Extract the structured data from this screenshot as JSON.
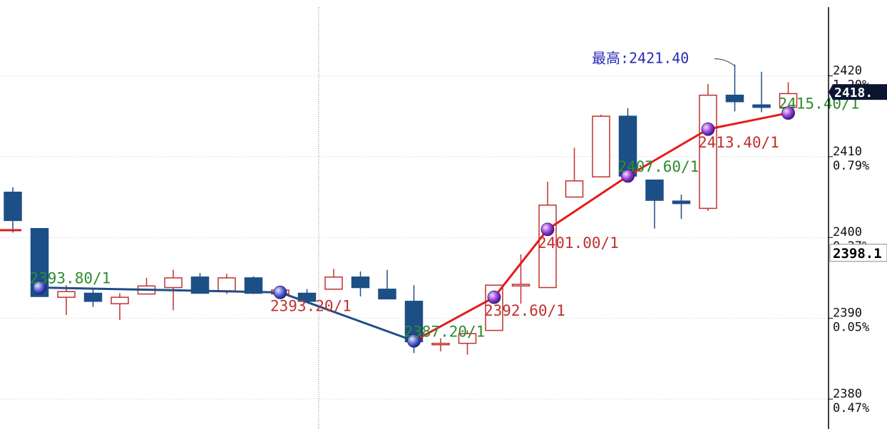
{
  "chart_data": {
    "type": "candlestick",
    "ylim": [
      2376.3,
      2428.5
    ],
    "grid": true,
    "y_ticks": [
      {
        "value": 2420,
        "pct": "1.20%"
      },
      {
        "value": 2410,
        "pct": "0.79%"
      },
      {
        "value": 2400,
        "pct": "0.37%"
      },
      {
        "value": 2390,
        "pct": "0.05%"
      },
      {
        "value": 2380,
        "pct": "0.47%"
      }
    ],
    "candles": [
      {
        "o": 2405.6,
        "h": 2406.2,
        "l": 2400.6,
        "c": 2402.1
      },
      {
        "o": 2401.1,
        "h": 2401.1,
        "l": 2392.7,
        "c": 2392.7
      },
      {
        "o": 2392.6,
        "h": 2394.1,
        "l": 2390.4,
        "c": 2393.3
      },
      {
        "o": 2393.1,
        "h": 2393.6,
        "l": 2391.4,
        "c": 2392.1
      },
      {
        "o": 2391.8,
        "h": 2393.1,
        "l": 2389.8,
        "c": 2392.6
      },
      {
        "o": 2393.0,
        "h": 2395.0,
        "l": 2393.0,
        "c": 2394.0
      },
      {
        "o": 2393.8,
        "h": 2396.0,
        "l": 2391.0,
        "c": 2395.0
      },
      {
        "o": 2395.1,
        "h": 2395.6,
        "l": 2393.1,
        "c": 2393.1
      },
      {
        "o": 2393.4,
        "h": 2395.5,
        "l": 2393.0,
        "c": 2395.0
      },
      {
        "o": 2395.0,
        "h": 2395.2,
        "l": 2393.0,
        "c": 2393.1
      },
      {
        "o": 2393.0,
        "h": 2393.7,
        "l": 2393.0,
        "c": 2393.5
      },
      {
        "o": 2393.1,
        "h": 2393.6,
        "l": 2392.1,
        "c": 2392.1
      },
      {
        "o": 2393.6,
        "h": 2396.1,
        "l": 2393.6,
        "c": 2395.1
      },
      {
        "o": 2395.1,
        "h": 2395.8,
        "l": 2392.7,
        "c": 2393.8
      },
      {
        "o": 2393.6,
        "h": 2396.0,
        "l": 2392.4,
        "c": 2392.4
      },
      {
        "o": 2392.1,
        "h": 2394.1,
        "l": 2385.7,
        "c": 2387.1
      },
      {
        "o": 2386.9,
        "h": 2387.5,
        "l": 2385.9,
        "c": 2386.9
      },
      {
        "o": 2386.9,
        "h": 2388.5,
        "l": 2385.5,
        "c": 2388.1
      },
      {
        "o": 2388.5,
        "h": 2394.1,
        "l": 2388.5,
        "c": 2394.1
      },
      {
        "o": 2394.0,
        "h": 2397.9,
        "l": 2391.8,
        "c": 2394.2
      },
      {
        "o": 2393.8,
        "h": 2406.9,
        "l": 2393.8,
        "c": 2404.0
      },
      {
        "o": 2405.0,
        "h": 2411.1,
        "l": 2405.0,
        "c": 2407.0
      },
      {
        "o": 2407.5,
        "h": 2415.2,
        "l": 2407.5,
        "c": 2415.0
      },
      {
        "o": 2415.0,
        "h": 2416.0,
        "l": 2407.0,
        "c": 2407.6
      },
      {
        "o": 2407.1,
        "h": 2407.1,
        "l": 2401.1,
        "c": 2404.6
      },
      {
        "o": 2404.5,
        "h": 2405.3,
        "l": 2402.3,
        "c": 2404.2
      },
      {
        "o": 2403.6,
        "h": 2419.0,
        "l": 2403.3,
        "c": 2417.6
      },
      {
        "o": 2417.6,
        "h": 2421.4,
        "l": 2415.6,
        "c": 2416.8
      },
      {
        "o": 2416.4,
        "h": 2420.5,
        "l": 2415.5,
        "c": 2416.1
      },
      {
        "o": 2416.1,
        "h": 2419.2,
        "l": 2416.1,
        "c": 2417.8
      }
    ],
    "line_points": [
      {
        "i": 1,
        "value": 2393.8
      },
      {
        "i": 10,
        "value": 2393.2
      },
      {
        "i": 15,
        "value": 2387.2
      },
      {
        "i": 18,
        "value": 2392.6
      },
      {
        "i": 20,
        "value": 2401.0
      },
      {
        "i": 23,
        "value": 2407.6
      },
      {
        "i": 26,
        "value": 2413.4
      },
      {
        "i": 29,
        "value": 2415.4
      }
    ],
    "line_labels": [
      {
        "point": 0,
        "text": "2393.80/1",
        "color": "green"
      },
      {
        "point": 1,
        "text": "2393.20/1",
        "color": "red"
      },
      {
        "point": 2,
        "text": "2387.20/1",
        "color": "green"
      },
      {
        "point": 3,
        "text": "2392.60/1",
        "color": "red"
      },
      {
        "point": 4,
        "text": "2401.00/1",
        "color": "red"
      },
      {
        "point": 5,
        "text": "2407.60/1",
        "color": "green"
      },
      {
        "point": 6,
        "text": "2413.40/1",
        "color": "red"
      },
      {
        "point": 7,
        "text": "2415.40/1",
        "color": "green"
      }
    ],
    "max_annotation": {
      "text": "最高:2421.40",
      "candle": 27,
      "value": 2421.4
    },
    "price_tags": [
      {
        "text": "2418.",
        "value": 2418.0,
        "style": "dark"
      },
      {
        "text": "2398.1",
        "value": 2398.1,
        "style": "light"
      }
    ],
    "colors": {
      "up": "#c0302e",
      "down": "#1d4f87",
      "line_down": "#1d4f87",
      "line_up": "#e31b1b",
      "label_green": "#2e8b2e",
      "label_red": "#c0302e",
      "annotation": "#2a2ab8",
      "grid": "#c8c8c8",
      "axis": "#000000",
      "tag_dark": "#0a1530"
    }
  }
}
